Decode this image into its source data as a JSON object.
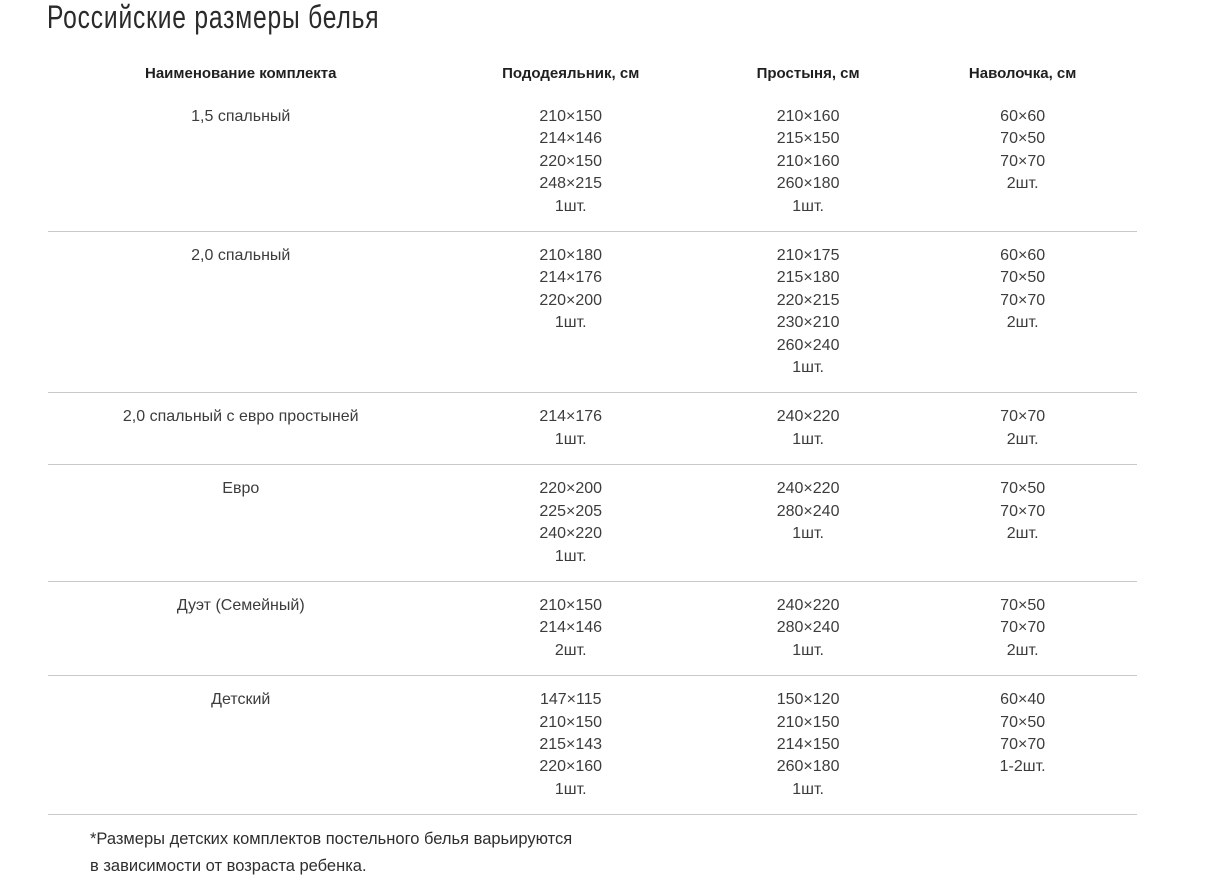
{
  "page": {
    "title": "Российские размеры белья",
    "footnote": "*Размеры детских комплектов постельного белья варьируются\nв зависимости от возраста ребенка."
  },
  "table": {
    "headers": {
      "name": "Наименование комплекта",
      "duvet": "Пододеяльник, см",
      "sheet": "Простыня, см",
      "pillow": "Наволочка, см"
    },
    "rows": [
      {
        "name": "1,5 спальный",
        "duvet": [
          "210×150",
          "214×146",
          "220×150",
          "248×215",
          "1шт."
        ],
        "sheet": [
          "210×160",
          "215×150",
          "210×160",
          "260×180",
          "1шт."
        ],
        "pillow": [
          "60×60",
          "70×50",
          "70×70",
          "2шт."
        ]
      },
      {
        "name": "2,0 спальный",
        "duvet": [
          "210×180",
          "214×176",
          "220×200",
          "1шт."
        ],
        "sheet": [
          "210×175",
          "215×180",
          "220×215",
          "230×210",
          "260×240",
          "1шт."
        ],
        "pillow": [
          "60×60",
          "70×50",
          "70×70",
          "2шт."
        ]
      },
      {
        "name": "2,0 спальный с евро простыней",
        "duvet": [
          "214×176",
          "1шт."
        ],
        "sheet": [
          "240×220",
          "1шт."
        ],
        "pillow": [
          "70×70",
          "2шт."
        ]
      },
      {
        "name": "Евро",
        "duvet": [
          "220×200",
          "225×205",
          "240×220",
          "1шт."
        ],
        "sheet": [
          "240×220",
          "280×240",
          "1шт."
        ],
        "pillow": [
          "70×50",
          "70×70",
          "2шт."
        ]
      },
      {
        "name": "Дуэт (Семейный)",
        "duvet": [
          "210×150",
          "214×146",
          "2шт."
        ],
        "sheet": [
          "240×220",
          "280×240",
          "1шт."
        ],
        "pillow": [
          "70×50",
          "70×70",
          "2шт."
        ]
      },
      {
        "name": "Детский",
        "duvet": [
          "147×115",
          "210×150",
          "215×143",
          "220×160",
          "1шт."
        ],
        "sheet": [
          "150×120",
          "210×150",
          "214×150",
          "260×180",
          "1шт."
        ],
        "pillow": [
          "60×40",
          "70×50",
          "70×70",
          "1-2шт."
        ]
      }
    ]
  },
  "colors": {
    "text": "#3c3c3c",
    "header_text": "#1f1f1f",
    "divider": "#c9c9c9",
    "background": "#ffffff"
  }
}
